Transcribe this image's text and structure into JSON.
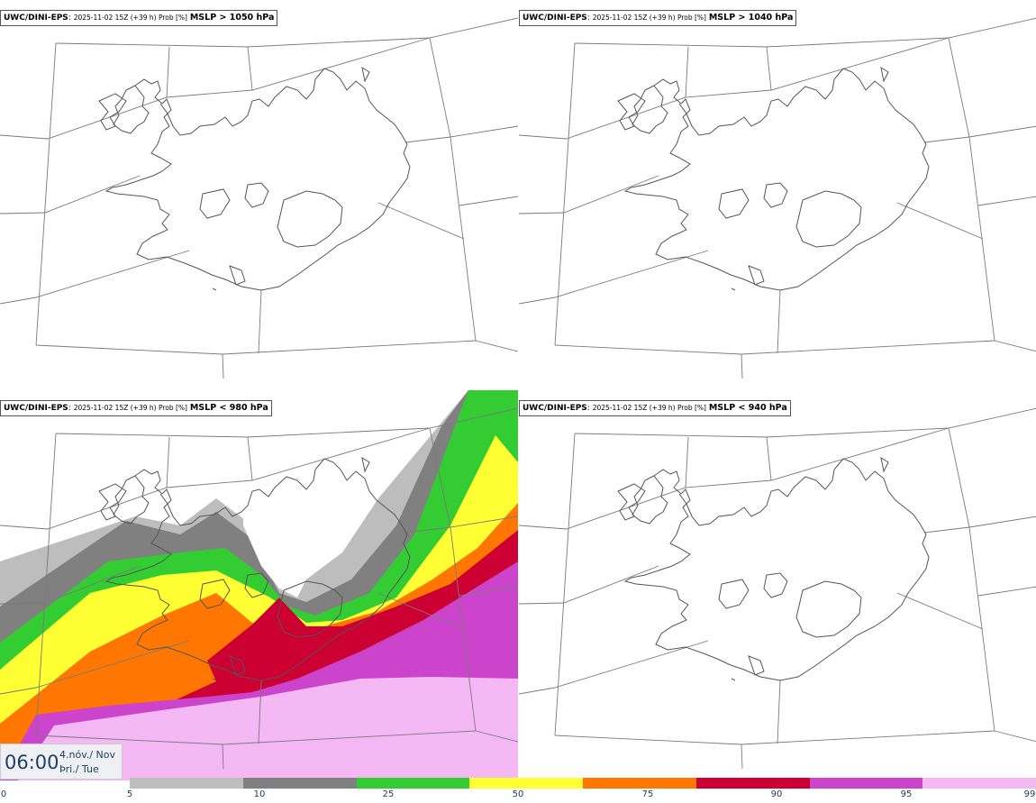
{
  "panels": [
    {
      "model": "UWC/DINI-EPS",
      "meta": "2025-11-02 15Z (+39 h) Prob [%]",
      "threshold": "MSLP > 1050 hPa"
    },
    {
      "model": "UWC/DINI-EPS",
      "meta": "2025-11-02 15Z (+39 h) Prob [%]",
      "threshold": "MSLP > 1040 hPa"
    },
    {
      "model": "UWC/DINI-EPS",
      "meta": "2025-11-02 15Z (+39 h) Prob [%]",
      "threshold": "MSLP < 980 hPa"
    },
    {
      "model": "UWC/DINI-EPS",
      "meta": "2025-11-02 15Z (+39 h) Prob [%]",
      "threshold": "MSLP < 940 hPa"
    }
  ],
  "time": {
    "hm": "06:00",
    "date": "4.nóv./ Nov",
    "day": "Þri./ Tue"
  },
  "colorbar": {
    "ticks": [
      "0",
      "5",
      "10",
      "25",
      "50",
      "75",
      "90",
      "95",
      "99"
    ],
    "colors": [
      "#bdbdbd",
      "#808080",
      "#33cc33",
      "#ffff33",
      "#ff7700",
      "#cc0033",
      "#cc44cc",
      "#f4b8f4"
    ]
  }
}
